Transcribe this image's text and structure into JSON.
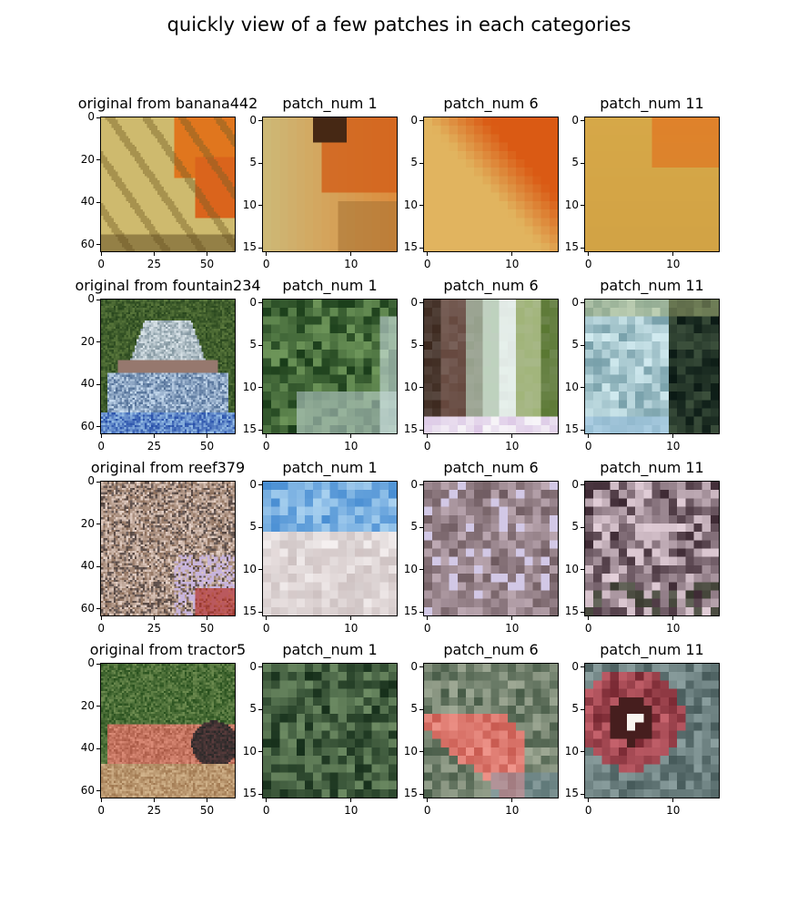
{
  "figure": {
    "title": "quickly view of a few patches in each categories"
  },
  "rows": [
    {
      "panels": [
        {
          "title": "original from banana442",
          "kind": "original",
          "scene": "banana",
          "xticks": [
            "0",
            "25",
            "50"
          ],
          "yticks": [
            "0",
            "20",
            "40",
            "60"
          ]
        },
        {
          "title": "patch_num 1",
          "kind": "patch",
          "scene": "banana-p1",
          "xticks": [
            "0",
            "10"
          ],
          "yticks": [
            "0",
            "5",
            "10",
            "15"
          ]
        },
        {
          "title": "patch_num 6",
          "kind": "patch",
          "scene": "banana-p6",
          "xticks": [
            "0",
            "10"
          ],
          "yticks": [
            "0",
            "5",
            "10",
            "15"
          ]
        },
        {
          "title": "patch_num 11",
          "kind": "patch",
          "scene": "banana-p11",
          "xticks": [
            "0",
            "10"
          ],
          "yticks": [
            "0",
            "5",
            "10",
            "15"
          ]
        }
      ]
    },
    {
      "panels": [
        {
          "title": "original from fountain234",
          "kind": "original",
          "scene": "fountain",
          "xticks": [
            "0",
            "25",
            "50"
          ],
          "yticks": [
            "0",
            "20",
            "40",
            "60"
          ]
        },
        {
          "title": "patch_num 1",
          "kind": "patch",
          "scene": "fountain-p1",
          "xticks": [
            "0",
            "10"
          ],
          "yticks": [
            "0",
            "5",
            "10",
            "15"
          ]
        },
        {
          "title": "patch_num 6",
          "kind": "patch",
          "scene": "fountain-p6",
          "xticks": [
            "0",
            "10"
          ],
          "yticks": [
            "0",
            "5",
            "10",
            "15"
          ]
        },
        {
          "title": "patch_num 11",
          "kind": "patch",
          "scene": "fountain-p11",
          "xticks": [
            "0",
            "10"
          ],
          "yticks": [
            "0",
            "5",
            "10",
            "15"
          ]
        }
      ]
    },
    {
      "panels": [
        {
          "title": "original from reef379",
          "kind": "original",
          "scene": "reef",
          "xticks": [
            "0",
            "25",
            "50"
          ],
          "yticks": [
            "0",
            "20",
            "40",
            "60"
          ]
        },
        {
          "title": "patch_num 1",
          "kind": "patch",
          "scene": "reef-p1",
          "xticks": [
            "0",
            "10"
          ],
          "yticks": [
            "0",
            "5",
            "10",
            "15"
          ]
        },
        {
          "title": "patch_num 6",
          "kind": "patch",
          "scene": "reef-p6",
          "xticks": [
            "0",
            "10"
          ],
          "yticks": [
            "0",
            "5",
            "10",
            "15"
          ]
        },
        {
          "title": "patch_num 11",
          "kind": "patch",
          "scene": "reef-p11",
          "xticks": [
            "0",
            "10"
          ],
          "yticks": [
            "0",
            "5",
            "10",
            "15"
          ]
        }
      ]
    },
    {
      "panels": [
        {
          "title": "original from tractor5",
          "kind": "original",
          "scene": "tractor",
          "xticks": [
            "0",
            "25",
            "50"
          ],
          "yticks": [
            "0",
            "20",
            "40",
            "60"
          ]
        },
        {
          "title": "patch_num 1",
          "kind": "patch",
          "scene": "tractor-p1",
          "xticks": [
            "0",
            "10"
          ],
          "yticks": [
            "0",
            "5",
            "10",
            "15"
          ]
        },
        {
          "title": "patch_num 6",
          "kind": "patch",
          "scene": "tractor-p6",
          "xticks": [
            "0",
            "10"
          ],
          "yticks": [
            "0",
            "5",
            "10",
            "15"
          ]
        },
        {
          "title": "patch_num 11",
          "kind": "patch",
          "scene": "tractor-p11",
          "xticks": [
            "0",
            "10"
          ],
          "yticks": [
            "0",
            "5",
            "10",
            "15"
          ]
        }
      ]
    }
  ]
}
